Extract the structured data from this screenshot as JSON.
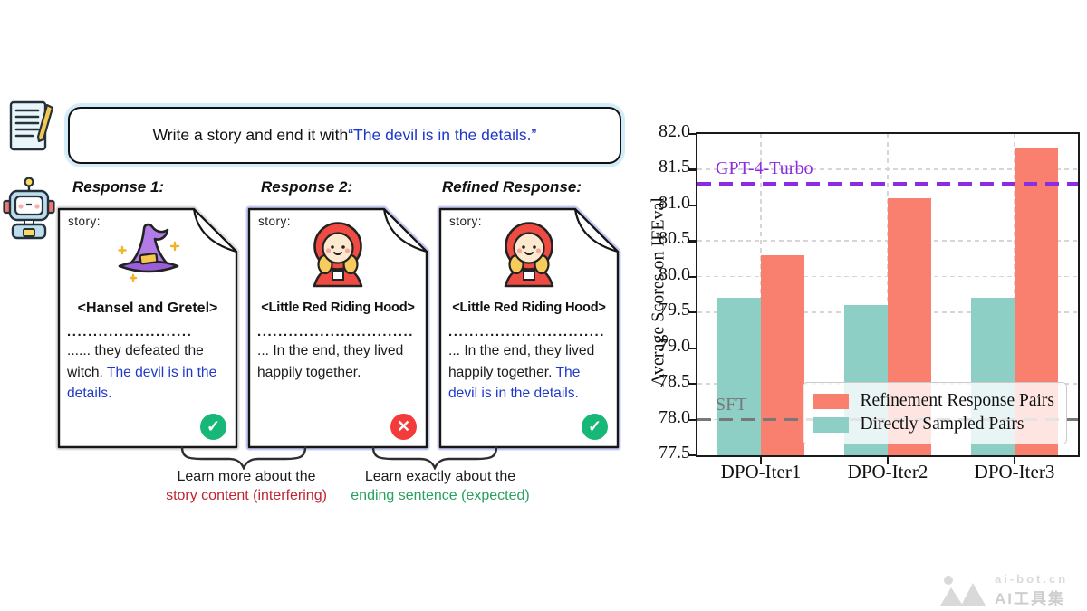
{
  "figure": {
    "prompt": {
      "text_plain": "Write a story and end it with ",
      "text_quoted": "“The devil is in the details.”"
    },
    "cards": [
      {
        "header": "Response 1:",
        "story_label": "story:",
        "icon": "witch-hat-icon",
        "title": "<Hansel and Gretel>",
        "dots": "........................",
        "body_plain": "...... they defeated the witch. ",
        "body_highlight": "The devil is in the details.",
        "status": "pass"
      },
      {
        "header": "Response 2:",
        "story_label": "story:",
        "icon": "red-riding-hood-icon",
        "title": "<Little Red Riding Hood>",
        "dots": "..............................",
        "body_plain": "... In the end, they lived happily together.",
        "body_highlight": "",
        "status": "fail"
      },
      {
        "header": "Refined Response:",
        "story_label": "story:",
        "icon": "red-riding-hood-icon",
        "title": "<Little Red Riding Hood>",
        "dots": "..............................",
        "body_plain": "... In the end, they lived happily together. ",
        "body_highlight": "The devil is in the details.",
        "status": "pass"
      }
    ],
    "annotations": [
      {
        "line1": "Learn more about the",
        "line2": "story content (interfering)",
        "color": "#c2232f"
      },
      {
        "line1": "Learn exactly about the",
        "line2": "ending sentence (expected)",
        "color": "#28a05e"
      }
    ],
    "colors": {
      "highlight_blue": "#2038c8",
      "pass_green": "#17b877",
      "fail_red": "#f43b3b"
    }
  },
  "chart_data": {
    "type": "bar",
    "title": "",
    "xlabel": "",
    "ylabel": "Average Scores on IFEval",
    "categories": [
      "DPO-Iter1",
      "DPO-Iter2",
      "DPO-Iter3"
    ],
    "series": [
      {
        "name": "Directly Sampled Pairs",
        "color": "#8DCEC5",
        "values": [
          79.7,
          79.6,
          79.7
        ]
      },
      {
        "name": "Refinement Response Pairs",
        "color": "#F97F6E",
        "values": [
          80.3,
          81.1,
          81.8
        ]
      }
    ],
    "legend_order": [
      "Refinement Response Pairs",
      "Directly Sampled Pairs"
    ],
    "legend_position": "lower right",
    "ylim": [
      77.5,
      82.0
    ],
    "ytick_step": 0.5,
    "grid": true,
    "reference_lines": [
      {
        "label": "GPT-4-Turbo",
        "value": 81.3,
        "color": "#8B2BE2"
      },
      {
        "label": "SFT",
        "value": 78.0,
        "color": "#787878"
      }
    ]
  },
  "watermark": {
    "site": "ai-bot.cn",
    "name": "AI工具集"
  }
}
